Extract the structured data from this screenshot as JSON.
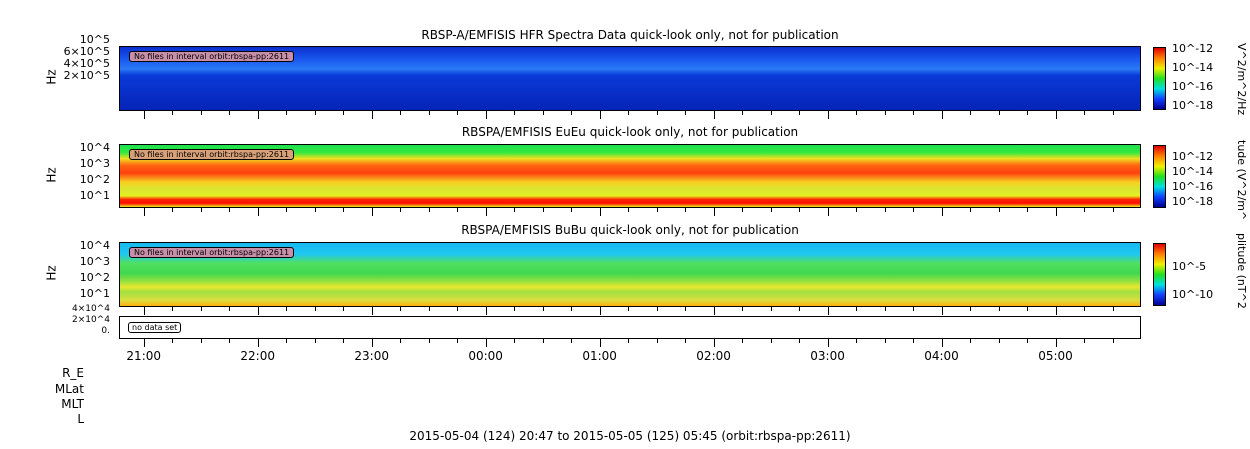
{
  "chart_data": [
    {
      "type": "heatmap",
      "title": "RBSP-A/EMFISIS  HFR Spectra Data quick-look only, not for publication",
      "ylabel": "Hz",
      "yticks": [
        "2×10^5",
        "4×10^5",
        "6×10^5",
        "10^5"
      ],
      "colorbar": {
        "label": "V^2/m^2/Hz",
        "ticks": [
          "10^-12",
          "10^-14",
          "10^-16",
          "10^-18"
        ]
      },
      "annotation": "No files in interval orbit:rbspa-pp:2611"
    },
    {
      "type": "heatmap",
      "title": "RBSPA/EMFISIS  EuEu quick-look only, not for publication",
      "ylabel": "Hz",
      "yticks": [
        "10^4",
        "10^3",
        "10^2",
        "10^1"
      ],
      "colorbar": {
        "label": "tude (V^2/m^",
        "ticks": [
          "10^-12",
          "10^-14",
          "10^-16",
          "10^-18"
        ]
      },
      "annotation": "No files in interval orbit:rbspa-pp:2611"
    },
    {
      "type": "heatmap",
      "title": "RBSPA/EMFISIS  BuBu quick-look only, not for publication",
      "ylabel": "Hz",
      "yticks": [
        "10^4",
        "10^3",
        "10^2",
        "10^1"
      ],
      "colorbar": {
        "label": "plitude (nT^2",
        "ticks": [
          "10^-5",
          "10^-10"
        ]
      },
      "annotation": "No files in interval orbit:rbspa-pp:2611"
    },
    {
      "type": "line",
      "yticks": [
        "4×10^4",
        "2×10^4",
        "0."
      ],
      "annotation": "no data set"
    }
  ],
  "xaxis": {
    "ticks": [
      "21:00",
      "22:00",
      "23:00",
      "00:00",
      "01:00",
      "02:00",
      "03:00",
      "04:00",
      "05:00"
    ],
    "hours_from_start": [
      0.217,
      1.217,
      2.217,
      3.217,
      4.217,
      5.217,
      6.217,
      7.217,
      8.217
    ],
    "span_hours": 8.967
  },
  "ephemeris_labels": [
    "R_E",
    "MLat",
    "MLT",
    "L"
  ],
  "footer": "2015-05-04 (124) 20:47 to 2015-05-05 (125) 05:45 (orbit:rbspa-pp:2611)"
}
